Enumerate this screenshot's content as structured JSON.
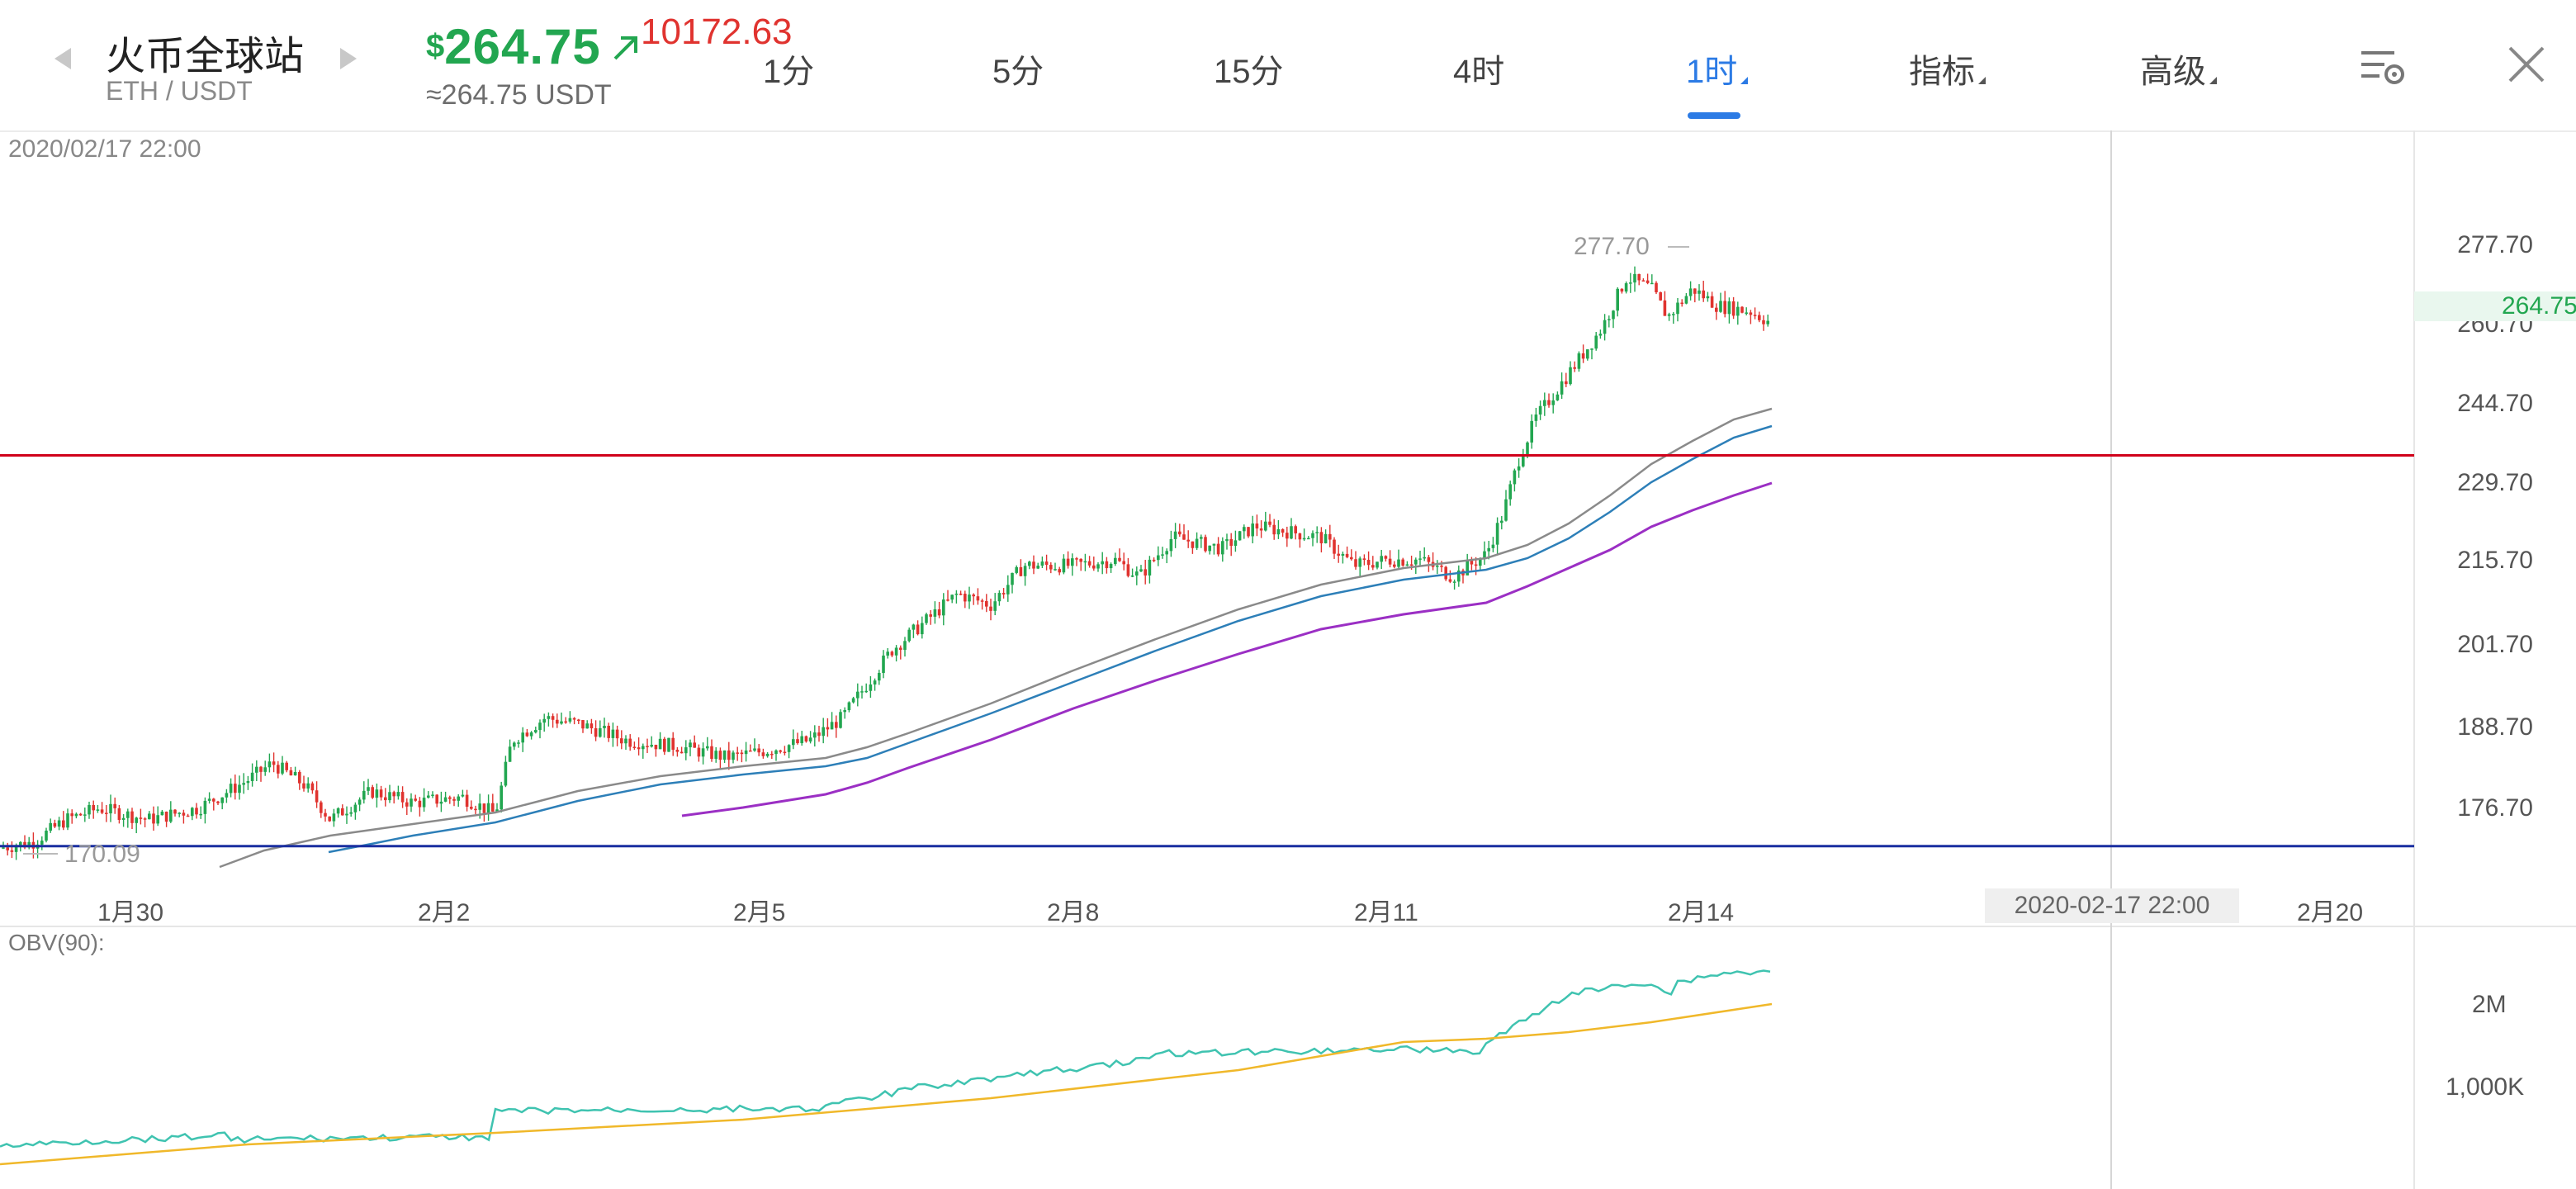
{
  "header": {
    "site_title": "火币全球站",
    "pair": "ETH / USDT",
    "price_symbol": "$",
    "price": "264.75",
    "btc_price": "10172.63",
    "approx_price": "≈264.75 USDT",
    "trend_icon": "arrow-up-right-icon",
    "colors": {
      "up": "#22a650",
      "down": "#e0332f",
      "accent": "#2c7be5"
    }
  },
  "tabs": [
    {
      "label": "1分",
      "active": false,
      "dropdown": false
    },
    {
      "label": "5分",
      "active": false,
      "dropdown": false
    },
    {
      "label": "15分",
      "active": false,
      "dropdown": false
    },
    {
      "label": "4时",
      "active": false,
      "dropdown": false
    },
    {
      "label": "1时",
      "active": true,
      "dropdown": true
    },
    {
      "label": "指标",
      "active": false,
      "dropdown": true
    },
    {
      "label": "高级",
      "active": false,
      "dropdown": true
    }
  ],
  "toolbar_icons": [
    "chart-settings-icon",
    "close-icon"
  ],
  "chart": {
    "timestamp": "2020/02/17 22:00",
    "price_axis": [
      "277.70",
      "260.70",
      "244.70",
      "229.70",
      "215.70",
      "201.70",
      "188.70",
      "176.70"
    ],
    "current_price": "264.75",
    "high_label": "277.70",
    "low_label": "170.09",
    "date_axis": [
      "1月30",
      "2月2",
      "2月5",
      "2月8",
      "2月11",
      "2月14",
      "2月20"
    ],
    "crosshair_date": "2020-02-17 22:00",
    "horizontal_lines": [
      {
        "price": 240.5,
        "color": "#d0021b"
      },
      {
        "price": 171.3,
        "color": "#1a2fa0"
      }
    ]
  },
  "obv": {
    "label": "OBV(90):",
    "axis": [
      "2M",
      "1,000K"
    ]
  }
}
